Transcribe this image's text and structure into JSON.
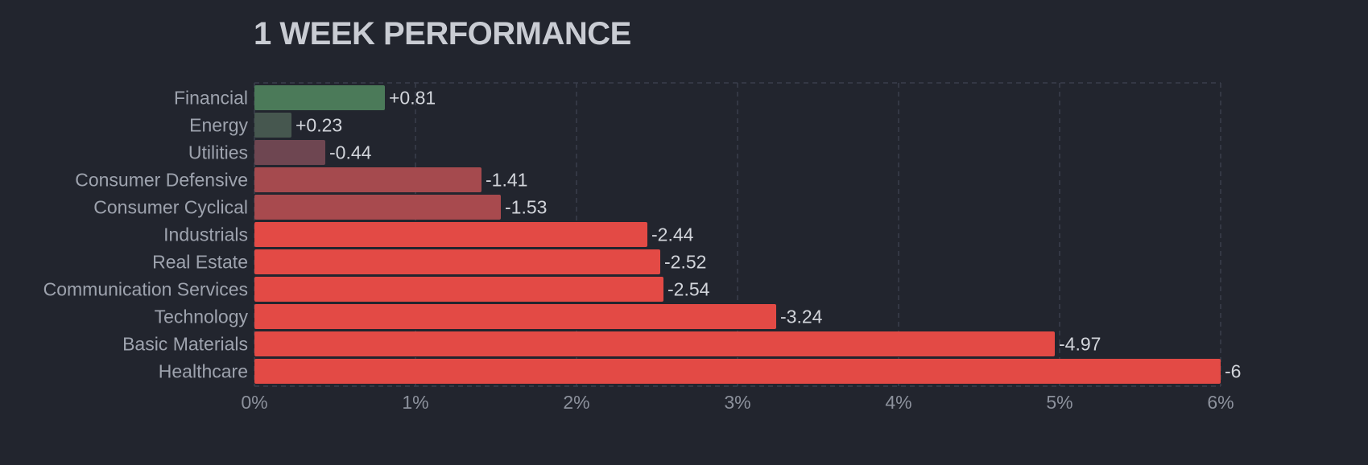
{
  "chart_data": {
    "type": "bar",
    "orientation": "horizontal",
    "title": "1 WEEK PERFORMANCE",
    "categories": [
      "Financial",
      "Energy",
      "Utilities",
      "Consumer Defensive",
      "Consumer Cyclical",
      "Industrials",
      "Real Estate",
      "Communication Services",
      "Technology",
      "Basic Materials",
      "Healthcare"
    ],
    "values": [
      0.81,
      0.23,
      -0.44,
      -1.41,
      -1.53,
      -2.44,
      -2.52,
      -2.54,
      -3.24,
      -4.97,
      -6
    ],
    "value_labels": [
      "+0.81",
      "+0.23",
      "-0.44",
      "-1.41",
      "-1.53",
      "-2.44",
      "-2.52",
      "-2.54",
      "-3.24",
      "-4.97",
      "-6"
    ],
    "x_ticks": [
      "0%",
      "1%",
      "2%",
      "3%",
      "4%",
      "5%",
      "6%"
    ],
    "xlim": [
      0,
      6
    ],
    "grid": true,
    "bar_colors": [
      "#4b7a59",
      "#46574f",
      "#6e4651",
      "#a54a4e",
      "#a84a4e",
      "#e34a45",
      "#e34a45",
      "#e34a45",
      "#e34a45",
      "#e34a45",
      "#e34a45"
    ],
    "background": "#22252e"
  }
}
